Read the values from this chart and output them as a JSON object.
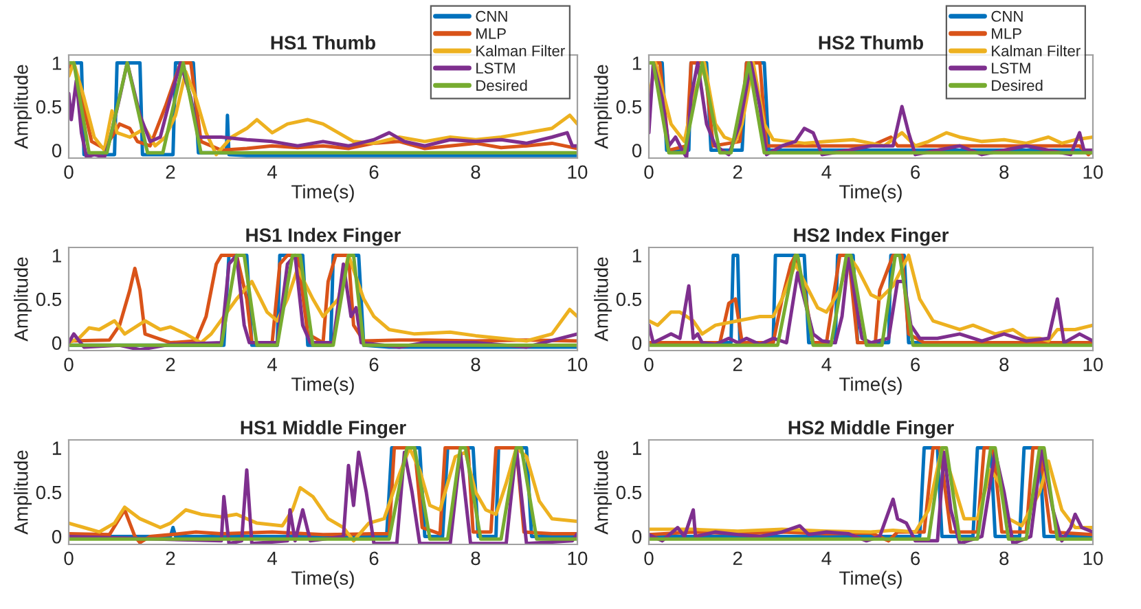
{
  "chart_data": [
    {
      "type": "line",
      "title": "HS1 Thumb",
      "xlabel": "Time(s)",
      "ylabel": "Amplitude",
      "xlim": [
        0,
        10
      ],
      "xticks": [
        0,
        2,
        4,
        6,
        8,
        10
      ],
      "ylim": [
        -0.09,
        1.09
      ],
      "yticks": [
        0,
        0.5,
        1
      ],
      "legend": "top right",
      "series": [
        {
          "name": "CNN",
          "color": "#0072bd",
          "x": [
            0,
            0.25,
            0.3,
            0.9,
            0.95,
            1.4,
            1.45,
            2.05,
            2.1,
            2.45,
            2.55,
            3.1,
            3.12,
            3.15,
            3.5,
            5,
            10
          ],
          "values": [
            1,
            1,
            -0.05,
            -0.05,
            1,
            1,
            -0.05,
            -0.05,
            1,
            1,
            -0.03,
            -0.03,
            0.4,
            -0.05,
            -0.06,
            -0.06,
            -0.06
          ]
        },
        {
          "name": "MLP",
          "color": "#d95319",
          "x": [
            0,
            0.1,
            0.45,
            0.7,
            0.9,
            1.0,
            1.2,
            1.35,
            1.6,
            1.9,
            2.2,
            2.4,
            2.6,
            3,
            3.5,
            4,
            4.5,
            5,
            5.5,
            6,
            6.5,
            7,
            7.5,
            8,
            8.5,
            9,
            9.5,
            10
          ],
          "values": [
            0.95,
            1,
            0.1,
            0.02,
            0.2,
            0.3,
            0.25,
            0.1,
            0.05,
            0.5,
            1,
            1,
            0.1,
            0,
            0.02,
            0.05,
            0.03,
            0.05,
            0.02,
            0.08,
            0.1,
            0.02,
            0.05,
            0.08,
            0.03,
            0.05,
            0.08,
            0.02
          ]
        },
        {
          "name": "Kalman Filter",
          "color": "#edb120",
          "x": [
            0,
            0.1,
            0.3,
            0.5,
            0.7,
            0.85,
            0.95,
            1.2,
            1.5,
            1.7,
            1.9,
            2.1,
            2.3,
            2.5,
            2.7,
            2.9,
            3.2,
            3.5,
            3.7,
            4.0,
            4.3,
            4.7,
            5.0,
            5.3,
            5.6,
            6,
            6.5,
            7,
            7.5,
            8,
            8.5,
            9,
            9.5,
            9.85,
            10
          ],
          "values": [
            0.85,
            1,
            0.6,
            0.15,
            0,
            0.45,
            0.2,
            0.15,
            0.25,
            0.05,
            0.15,
            0.4,
            0.9,
            0.6,
            0.2,
            -0.05,
            0.15,
            0.25,
            0.35,
            0.2,
            0.3,
            0.35,
            0.3,
            0.2,
            0.1,
            0.08,
            0.15,
            0.1,
            0.15,
            0.12,
            0.15,
            0.2,
            0.25,
            0.4,
            0.3
          ]
        },
        {
          "name": "LSTM",
          "color": "#7e2f8e",
          "x": [
            0,
            0.05,
            0.15,
            0.25,
            0.35,
            0.5,
            0.7,
            0.8,
            1.0,
            1.15,
            1.4,
            1.6,
            1.8,
            2.0,
            2.2,
            2.4,
            2.55,
            3,
            3.5,
            4,
            4.5,
            5,
            5.5,
            6,
            6.3,
            6.6,
            7,
            7.5,
            8,
            8.5,
            9,
            9.5,
            9.8,
            9.9,
            10
          ],
          "values": [
            0.65,
            0.35,
            0.8,
            0.2,
            -0.08,
            -0.05,
            -0.08,
            0.1,
            0.6,
            1,
            0.4,
            0.1,
            0.15,
            0.6,
            1,
            0.6,
            0.15,
            0.15,
            0.12,
            0.1,
            0.05,
            0.1,
            0.05,
            0.12,
            0.2,
            0.1,
            0.05,
            0.12,
            0.1,
            0.12,
            0.08,
            0.15,
            0.2,
            0.05,
            0.05
          ]
        },
        {
          "name": "Desired",
          "color": "#77ac30",
          "x": [
            0,
            0.1,
            0.4,
            0.75,
            1.15,
            1.55,
            1.85,
            2.25,
            2.6,
            10
          ],
          "values": [
            1,
            1,
            -0.03,
            -0.03,
            1,
            -0.03,
            -0.03,
            1,
            -0.03,
            -0.03
          ]
        }
      ]
    },
    {
      "type": "line",
      "title": "HS2 Thumb",
      "xlabel": "Time(s)",
      "ylabel": "Amplitude",
      "xlim": [
        0,
        10
      ],
      "xticks": [
        0,
        2,
        4,
        6,
        8,
        10
      ],
      "ylim": [
        -0.09,
        1.09
      ],
      "yticks": [
        0,
        0.5,
        1
      ],
      "legend": "top right",
      "series": [
        {
          "name": "CNN",
          "color": "#0072bd",
          "x": [
            0,
            0.3,
            0.4,
            0.9,
            0.95,
            1.3,
            1.4,
            2.1,
            2.2,
            2.6,
            2.7,
            10
          ],
          "values": [
            1,
            1,
            0,
            0,
            1,
            1,
            0,
            0,
            1,
            1,
            0,
            0
          ]
        },
        {
          "name": "MLP",
          "color": "#d95319",
          "x": [
            0,
            0.25,
            0.45,
            0.85,
            0.95,
            1.25,
            1.45,
            2.05,
            2.2,
            2.5,
            2.65,
            5,
            5.45,
            5.6,
            7,
            9.7,
            9.9,
            10
          ],
          "values": [
            1,
            1,
            0,
            0.05,
            1,
            1,
            0.05,
            0.1,
            1,
            1,
            0.05,
            0.05,
            0.15,
            0.05,
            0.05,
            0.05,
            -0.05,
            0
          ]
        },
        {
          "name": "Kalman Filter",
          "color": "#edb120",
          "x": [
            0,
            0.15,
            0.5,
            0.8,
            1.0,
            1.25,
            1.5,
            1.7,
            1.95,
            2.1,
            2.35,
            2.6,
            2.8,
            3.5,
            4,
            4.6,
            5,
            5.3,
            5.7,
            6,
            6.3,
            6.7,
            7,
            7.5,
            8,
            8.5,
            9,
            9.3,
            9.6,
            10
          ],
          "values": [
            0.6,
            1,
            0.3,
            0.1,
            0.6,
            1,
            0.3,
            0.15,
            0.1,
            0.3,
            1,
            0.3,
            0.12,
            0.08,
            0.1,
            0.12,
            0.08,
            0.05,
            0.2,
            0.05,
            0.1,
            0.2,
            0.15,
            0.1,
            0.12,
            0.08,
            0.15,
            0.08,
            0.12,
            0.15
          ]
        },
        {
          "name": "LSTM",
          "color": "#7e2f8e",
          "x": [
            0,
            0.1,
            0.3,
            0.45,
            0.6,
            0.75,
            0.85,
            0.95,
            1.1,
            1.3,
            1.5,
            1.8,
            2.05,
            2.3,
            2.5,
            2.65,
            3,
            3.3,
            3.5,
            3.7,
            3.9,
            4.5,
            5,
            5.5,
            5.7,
            5.85,
            6,
            6.5,
            7,
            7.5,
            8,
            8.5,
            9,
            9.5,
            9.7,
            9.8,
            10
          ],
          "values": [
            0.2,
            1,
            0.6,
            0.05,
            0.15,
            0,
            -0.08,
            0.6,
            1,
            0.3,
            0.05,
            -0.05,
            0.3,
            1,
            0.5,
            -0.05,
            0.05,
            0.1,
            0.25,
            0.2,
            -0.05,
            0,
            0.05,
            0.05,
            0.5,
            0.2,
            -0.05,
            0,
            0.05,
            -0.05,
            0,
            0.05,
            0,
            -0.05,
            0.2,
            0,
            0
          ]
        },
        {
          "name": "Desired",
          "color": "#77ac30",
          "x": [
            0,
            0.1,
            0.45,
            0.8,
            1.2,
            1.6,
            1.85,
            2.25,
            2.6,
            10
          ],
          "values": [
            1,
            1,
            -0.03,
            -0.03,
            1,
            -0.03,
            -0.03,
            1,
            -0.03,
            -0.03
          ]
        }
      ]
    },
    {
      "type": "line",
      "title": "HS1 Index Finger",
      "xlabel": "Time(s)",
      "ylabel": "Amplitude",
      "xlim": [
        0,
        10
      ],
      "xticks": [
        0,
        2,
        4,
        6,
        8,
        10
      ],
      "ylim": [
        -0.09,
        1.09
      ],
      "yticks": [
        0,
        0.5,
        1
      ],
      "series": [
        {
          "color": "#0072bd",
          "x": [
            0,
            3.05,
            3.15,
            3.5,
            3.6,
            4.1,
            4.15,
            4.6,
            4.7,
            5.15,
            5.2,
            5.7,
            5.8,
            6.3,
            10
          ],
          "values": [
            -0.03,
            -0.03,
            1,
            1,
            -0.03,
            -0.03,
            1,
            1,
            -0.03,
            -0.03,
            1,
            1,
            -0.03,
            -0.05,
            -0.05
          ]
        },
        {
          "color": "#d95319",
          "x": [
            0,
            0.8,
            1.0,
            1.2,
            1.3,
            1.4,
            1.5,
            2,
            2.5,
            2.7,
            2.9,
            3,
            3.3,
            3.5,
            3.6,
            4.0,
            4.15,
            4.3,
            4.5,
            4.7,
            5.0,
            5.1,
            5.25,
            5.5,
            5.6,
            5.8,
            6.5,
            7,
            8,
            9,
            10
          ],
          "values": [
            0.02,
            0.03,
            0.2,
            0.6,
            0.85,
            0.6,
            0.1,
            0,
            0.02,
            0.3,
            0.9,
            1,
            1,
            0.5,
            0,
            0,
            0.9,
            1,
            1,
            0.1,
            0,
            0.7,
            1,
            1,
            0.2,
            0.02,
            0.03,
            0.03,
            0.02,
            0.03,
            0.02
          ]
        },
        {
          "color": "#edb120",
          "x": [
            0,
            0.2,
            0.4,
            0.6,
            0.9,
            1.1,
            1.5,
            1.8,
            2.0,
            2.3,
            2.6,
            2.8,
            3.3,
            3.6,
            3.9,
            4.1,
            4.3,
            4.5,
            4.8,
            5.0,
            5.3,
            5.5,
            5.8,
            6.0,
            6.3,
            6.8,
            7.5,
            8,
            8.5,
            9,
            9.5,
            9.85,
            10
          ],
          "values": [
            0,
            0.05,
            0.17,
            0.15,
            0.25,
            0.1,
            0.25,
            0.15,
            0.18,
            0.1,
            0,
            0.1,
            0.5,
            0.7,
            0.35,
            0.25,
            0.5,
            0.85,
            0.5,
            0.3,
            0.5,
            1,
            0.5,
            0.3,
            0.15,
            0.1,
            0.12,
            0.08,
            0.05,
            0.02,
            0.1,
            0.38,
            0.3
          ]
        },
        {
          "color": "#7e2f8e",
          "x": [
            0,
            0.1,
            0.3,
            1,
            1.4,
            2,
            3,
            3.15,
            3.3,
            3.45,
            3.55,
            4.1,
            4.3,
            4.45,
            4.6,
            4.75,
            5.2,
            5.4,
            5.55,
            5.65,
            5.75,
            6.5,
            7,
            8,
            9,
            10
          ],
          "values": [
            0,
            0.1,
            -0.05,
            -0.03,
            -0.08,
            -0.02,
            0,
            0.9,
            1,
            0.2,
            0,
            0,
            0.9,
            1,
            0.2,
            0,
            0,
            0.9,
            0.3,
            0.4,
            0,
            -0.05,
            0,
            0,
            -0.05,
            0.1
          ]
        },
        {
          "color": "#77ac30",
          "x": [
            0,
            3,
            3.3,
            3.45,
            3.7,
            4.1,
            4.4,
            4.55,
            4.8,
            5.2,
            5.5,
            5.6,
            5.8,
            10
          ],
          "values": [
            -0.03,
            -0.03,
            1,
            1,
            -0.03,
            -0.03,
            1,
            1,
            -0.03,
            -0.03,
            1,
            1,
            -0.03,
            -0.03
          ]
        }
      ]
    },
    {
      "type": "line",
      "title": "HS2 Index Finger",
      "xlabel": "Time(s)",
      "ylabel": "Amplitude",
      "xlim": [
        0,
        10
      ],
      "xticks": [
        0,
        2,
        4,
        6,
        8,
        10
      ],
      "ylim": [
        -0.09,
        1.09
      ],
      "yticks": [
        0,
        0.5,
        1
      ],
      "series": [
        {
          "color": "#0072bd",
          "x": [
            0,
            1.85,
            1.9,
            2.0,
            2.05,
            2.8,
            2.85,
            3.5,
            3.6,
            4.2,
            4.25,
            4.6,
            4.7,
            5.4,
            5.45,
            5.75,
            5.85,
            10
          ],
          "values": [
            0,
            0,
            1,
            1,
            0,
            0,
            1,
            1,
            0,
            0,
            1,
            1,
            0,
            0,
            1,
            1,
            0,
            0
          ]
        },
        {
          "color": "#d95319",
          "x": [
            0,
            1.6,
            1.8,
            1.95,
            2.1,
            2.8,
            3.0,
            3.2,
            3.3,
            3.5,
            3.7,
            4.0,
            4.15,
            4.3,
            4.5,
            4.7,
            5.1,
            5.2,
            5.5,
            5.7,
            5.85,
            6.2,
            10
          ],
          "values": [
            0,
            0,
            0.45,
            0.5,
            0,
            0,
            0.5,
            0.9,
            1,
            0.6,
            0,
            0,
            0.5,
            1,
            1,
            0,
            0,
            0.6,
            1,
            1,
            0.1,
            0,
            0
          ]
        },
        {
          "color": "#edb120",
          "x": [
            0,
            0.2,
            0.5,
            0.7,
            1.0,
            1.2,
            1.5,
            2,
            2.5,
            2.8,
            3,
            3.3,
            3.5,
            3.8,
            4.0,
            4.3,
            4.5,
            4.7,
            5.0,
            5.2,
            5.5,
            5.85,
            6.1,
            6.4,
            7,
            7.3,
            7.8,
            8.2,
            8.5,
            8.8,
            9,
            9.2,
            9.6,
            10
          ],
          "values": [
            0.25,
            0.2,
            0.35,
            0.35,
            0.25,
            0.1,
            0.2,
            0.25,
            0.3,
            0.3,
            0.5,
            0.9,
            0.7,
            0.4,
            0.35,
            0.6,
            1,
            0.85,
            0.55,
            0.5,
            0.65,
            1,
            0.5,
            0.25,
            0.15,
            0.2,
            0.1,
            0.15,
            0.05,
            0.05,
            0.02,
            0.15,
            0.15,
            0.2
          ]
        },
        {
          "color": "#7e2f8e",
          "x": [
            0,
            0.1,
            0.3,
            0.5,
            0.7,
            0.9,
            1.0,
            1.1,
            1.2,
            1.5,
            1.8,
            2.0,
            2.2,
            2.5,
            2.8,
            3.1,
            3.35,
            3.5,
            3.7,
            3.9,
            4.2,
            4.35,
            4.5,
            4.65,
            4.8,
            5,
            5.4,
            5.6,
            5.75,
            5.9,
            6.1,
            6.5,
            7,
            7.5,
            8,
            8.5,
            9,
            9.2,
            9.35,
            9.7,
            10
          ],
          "values": [
            0.2,
            0,
            0.05,
            0.1,
            0.05,
            0.65,
            0.05,
            0.1,
            0,
            -0.02,
            0.05,
            0,
            0.05,
            -0.02,
            0.05,
            0,
            0.8,
            0.5,
            0.1,
            0.02,
            0,
            0.3,
            1,
            0.5,
            0.05,
            0,
            0.05,
            0.7,
            0.7,
            0.2,
            0.05,
            0.05,
            0.1,
            0.02,
            0.1,
            0.02,
            0.05,
            0.5,
            0,
            0.1,
            0.02
          ]
        },
        {
          "color": "#77ac30",
          "x": [
            0,
            2.9,
            3.3,
            3.35,
            3.7,
            4.1,
            4.45,
            4.55,
            4.9,
            5.25,
            5.55,
            5.65,
            5.95,
            10
          ],
          "values": [
            -0.03,
            -0.03,
            1,
            1,
            -0.03,
            -0.03,
            1,
            1,
            -0.03,
            -0.03,
            1,
            1,
            -0.03,
            -0.03
          ]
        }
      ]
    },
    {
      "type": "line",
      "title": "HS1 Middle Finger",
      "xlabel": "Time(s)",
      "ylabel": "Amplitude",
      "xlim": [
        0,
        10
      ],
      "xticks": [
        0,
        2,
        4,
        6,
        8,
        10
      ],
      "ylim": [
        -0.09,
        1.09
      ],
      "yticks": [
        0,
        0.5,
        1
      ],
      "series": [
        {
          "color": "#0072bd",
          "x": [
            0,
            2,
            2.05,
            2.1,
            6.25,
            6.35,
            6.9,
            7.0,
            7.35,
            7.45,
            7.95,
            8.05,
            8.4,
            8.45,
            9.0,
            9.1,
            10
          ],
          "values": [
            0,
            0,
            0.1,
            0,
            0,
            1,
            1,
            0,
            0,
            1,
            1,
            0,
            0,
            1,
            1,
            0,
            0
          ]
        },
        {
          "color": "#d95319",
          "x": [
            0,
            0.8,
            1.1,
            1.3,
            1.4,
            1.6,
            2,
            2.5,
            3,
            4,
            5,
            6,
            6.3,
            6.4,
            6.8,
            6.95,
            7.3,
            7.4,
            7.85,
            7.95,
            8.3,
            8.4,
            8.8,
            8.95,
            9.5,
            10
          ],
          "values": [
            0.03,
            0.02,
            0.3,
            0,
            -0.07,
            0,
            0.02,
            0.05,
            0.03,
            0.05,
            0.02,
            0.03,
            0.03,
            1,
            1,
            0.1,
            0.03,
            1,
            1,
            0.05,
            0.05,
            1,
            1,
            0.05,
            0.03,
            0.03
          ]
        },
        {
          "color": "#edb120",
          "x": [
            0,
            0.3,
            0.6,
            0.9,
            1.1,
            1.4,
            1.8,
            2.0,
            2.3,
            2.6,
            3.0,
            3.3,
            3.7,
            4.2,
            4.4,
            4.55,
            4.8,
            5.1,
            5.4,
            5.6,
            5.9,
            6.2,
            6.5,
            6.7,
            6.9,
            7.1,
            7.3,
            7.6,
            7.8,
            8.0,
            8.2,
            8.4,
            8.6,
            8.8,
            9.0,
            9.25,
            9.5,
            10
          ],
          "values": [
            0.15,
            0.1,
            0.05,
            0.15,
            0.33,
            0.2,
            0.1,
            0.15,
            0.3,
            0.25,
            0.22,
            0.25,
            0.15,
            0.12,
            0.3,
            0.55,
            0.45,
            0.2,
            0.1,
            -0.05,
            0.15,
            0.2,
            0.7,
            1,
            0.75,
            0.35,
            0.3,
            0.9,
            0.95,
            0.5,
            0.3,
            0.25,
            0.6,
            1,
            0.9,
            0.4,
            0.2,
            0.17
          ]
        },
        {
          "color": "#7e2f8e",
          "x": [
            0,
            3.0,
            3.05,
            3.15,
            3.4,
            3.5,
            3.6,
            4.3,
            4.35,
            4.45,
            4.6,
            4.75,
            5.4,
            5.5,
            5.6,
            5.7,
            5.85,
            6.0,
            6.45,
            6.6,
            6.75,
            6.9,
            7.5,
            7.7,
            7.9,
            8.6,
            8.8,
            9.0,
            9.9,
            10
          ],
          "values": [
            0,
            -0.05,
            0.45,
            -0.08,
            -0.05,
            0.75,
            -0.08,
            -0.05,
            0.3,
            -0.05,
            0.3,
            -0.05,
            0,
            0.8,
            0.35,
            0.95,
            0.5,
            -0.08,
            -0.08,
            0.95,
            0.5,
            -0.08,
            -0.08,
            0.95,
            -0.08,
            -0.08,
            1,
            -0.08,
            -0.05,
            0.03
          ]
        },
        {
          "color": "#77ac30",
          "x": [
            0,
            6.3,
            6.65,
            6.8,
            7.1,
            7.45,
            7.7,
            7.8,
            8.1,
            8.5,
            8.8,
            8.9,
            9.2,
            10
          ],
          "values": [
            -0.03,
            -0.03,
            1,
            1,
            -0.03,
            -0.03,
            1,
            1,
            -0.03,
            -0.03,
            1,
            1,
            -0.03,
            -0.03
          ]
        }
      ]
    },
    {
      "type": "line",
      "title": "HS2 Middle Finger",
      "xlabel": "Time(s)",
      "ylabel": "Amplitude",
      "xlim": [
        0,
        10
      ],
      "xticks": [
        0,
        2,
        4,
        6,
        8,
        10
      ],
      "ylim": [
        -0.09,
        1.09
      ],
      "yticks": [
        0,
        0.5,
        1
      ],
      "series": [
        {
          "color": "#0072bd",
          "x": [
            0,
            6.1,
            6.2,
            6.5,
            6.6,
            7.3,
            7.4,
            7.7,
            7.8,
            8.35,
            8.45,
            8.8,
            8.9,
            10
          ],
          "values": [
            0,
            0,
            1,
            1,
            0,
            0,
            1,
            1,
            0,
            0,
            1,
            1,
            0,
            0
          ]
        },
        {
          "color": "#d95319",
          "x": [
            0,
            1,
            2,
            3,
            4,
            5,
            5.4,
            5.6,
            6.2,
            6.4,
            6.55,
            6.8,
            7.4,
            7.55,
            7.75,
            7.95,
            8.5,
            8.65,
            8.8,
            9.05,
            10
          ],
          "values": [
            0.02,
            0.05,
            0.03,
            0.05,
            0.03,
            0.04,
            -0.05,
            0.05,
            0.05,
            1,
            1,
            0.05,
            0.05,
            1,
            1,
            0.05,
            0.05,
            1,
            1,
            0.05,
            0.02
          ]
        },
        {
          "color": "#edb120",
          "x": [
            0,
            1,
            2,
            3,
            4,
            5,
            5.5,
            6,
            6.3,
            6.6,
            6.8,
            7.1,
            7.4,
            7.7,
            7.9,
            8.1,
            8.4,
            8.8,
            9.0,
            9.3,
            9.6,
            10
          ],
          "values": [
            0.08,
            0.08,
            0.06,
            0.08,
            0.06,
            0.05,
            0.07,
            0.05,
            0.3,
            1,
            0.7,
            0.2,
            0.2,
            0.75,
            0.6,
            0.2,
            0.12,
            0.5,
            0.85,
            0.3,
            0.1,
            0.1
          ]
        },
        {
          "color": "#7e2f8e",
          "x": [
            0,
            0.3,
            0.65,
            0.8,
            1.0,
            1.05,
            1.5,
            2,
            2.5,
            3,
            3.4,
            3.6,
            4,
            4.5,
            4.9,
            5.2,
            5.5,
            5.6,
            5.8,
            6.0,
            6.5,
            6.65,
            6.8,
            7.0,
            7.5,
            7.8,
            8.0,
            8.2,
            8.6,
            8.85,
            9.1,
            9.3,
            9.5,
            9.6,
            9.75,
            10
          ],
          "values": [
            0.02,
            -0.05,
            0.1,
            0,
            0.3,
            0,
            0.05,
            0.02,
            0,
            0.05,
            0.12,
            0.02,
            0.05,
            0.03,
            -0.05,
            0,
            0.42,
            0.2,
            0.15,
            -0.05,
            -0.05,
            0.95,
            0.3,
            -0.08,
            0,
            0.95,
            0.5,
            -0.08,
            0,
            1,
            0.3,
            -0.05,
            0.1,
            0.25,
            0.1,
            0.05
          ]
        },
        {
          "color": "#77ac30",
          "x": [
            0,
            6.3,
            6.6,
            6.7,
            7.0,
            7.4,
            7.7,
            7.8,
            8.1,
            8.5,
            8.8,
            8.9,
            9.2,
            10
          ],
          "values": [
            -0.03,
            -0.03,
            1,
            1,
            -0.03,
            -0.03,
            1,
            1,
            -0.03,
            -0.03,
            1,
            1,
            -0.03,
            -0.03
          ]
        }
      ]
    }
  ]
}
